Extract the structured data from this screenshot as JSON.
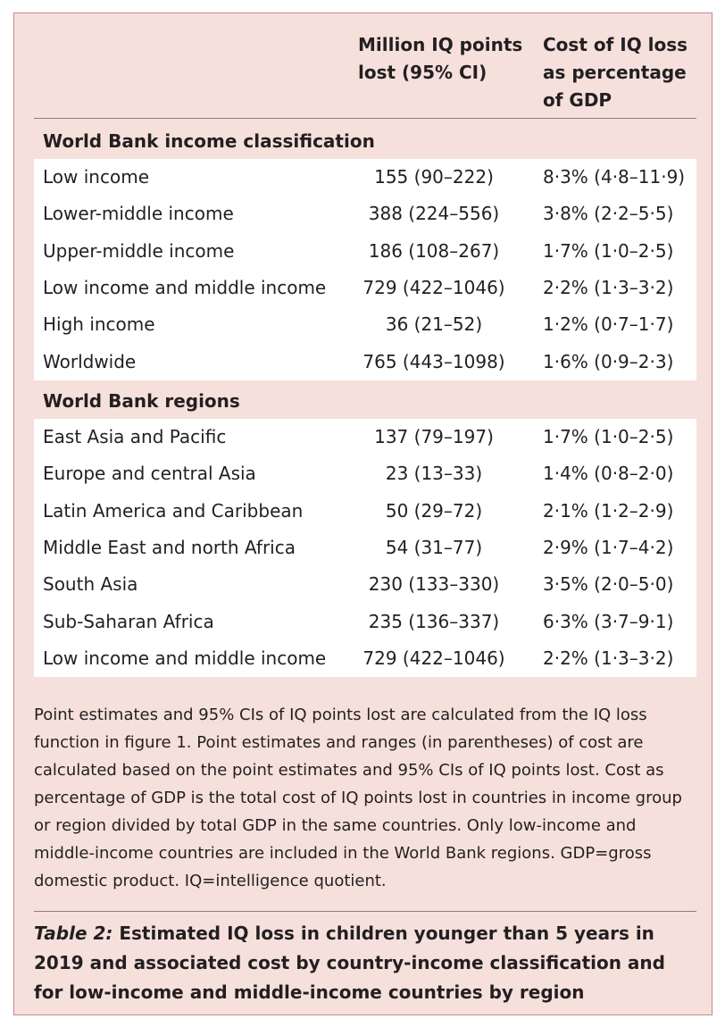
{
  "header": {
    "col2": [
      "Million IQ points",
      "lost (95% CI)"
    ],
    "col3": [
      "Cost of IQ loss",
      "as percentage",
      "of GDP"
    ]
  },
  "sections": [
    {
      "title": "World Bank income classification",
      "rows": [
        {
          "label": "Low income",
          "iq": "155 (90–222)",
          "cost": "8·3% (4·8–11·9)"
        },
        {
          "label": "Lower-middle income",
          "iq": "388 (224–556)",
          "cost": "3·8% (2·2–5·5)"
        },
        {
          "label": "Upper-middle income",
          "iq": "186 (108–267)",
          "cost": "1·7% (1·0–2·5)"
        },
        {
          "label": "Low income and middle income",
          "iq": "729 (422–1046)",
          "cost": "2·2% (1·3–3·2)"
        },
        {
          "label": "High income",
          "iq": "36 (21–52)",
          "cost": "1·2% (0·7–1·7)"
        },
        {
          "label": "Worldwide",
          "iq": "765 (443–1098)",
          "cost": "1·6% (0·9–2·3)"
        }
      ]
    },
    {
      "title": "World Bank regions",
      "rows": [
        {
          "label": "East Asia and Pacific",
          "iq": "137 (79–197)",
          "cost": "1·7% (1·0–2·5)"
        },
        {
          "label": "Europe and central Asia",
          "iq": "23 (13–33)",
          "cost": "1·4% (0·8–2·0)"
        },
        {
          "label": "Latin America and Caribbean",
          "iq": "50 (29–72)",
          "cost": "2·1% (1·2–2·9)"
        },
        {
          "label": "Middle East and north Africa",
          "iq": "54 (31–77)",
          "cost": "2·9% (1·7–4·2)"
        },
        {
          "label": "South Asia",
          "iq": "230 (133–330)",
          "cost": "3·5% (2·0–5·0)"
        },
        {
          "label": "Sub-Saharan Africa",
          "iq": "235 (136–337)",
          "cost": "6·3% (3·7–9·1)"
        },
        {
          "label": "Low income and middle income",
          "iq": "729 (422–1046)",
          "cost": "2·2% (1·3–3·2)"
        }
      ]
    }
  ],
  "footnote": "Point estimates and 95% CIs of IQ points lost are calculated from the IQ loss function in figure 1. Point estimates and ranges (in parentheses) of cost are calculated based on the point estimates and 95% CIs of IQ points lost. Cost as percentage of GDP is the total cost of IQ points lost in countries in income group or region divided by total GDP in the same countries. Only low-income and middle-income countries are included in the World Bank regions. GDP=gross domestic product. IQ=intelligence quotient.",
  "caption": {
    "label": "Table 2:",
    "text": " Estimated IQ loss in children younger than 5 years in 2019 and associated cost by country-income classification and for low-income and middle-income countries by region"
  },
  "colors": {
    "panel_bg": "#f6e0dc",
    "panel_border": "#c98791",
    "band_bg": "#ffffff"
  }
}
